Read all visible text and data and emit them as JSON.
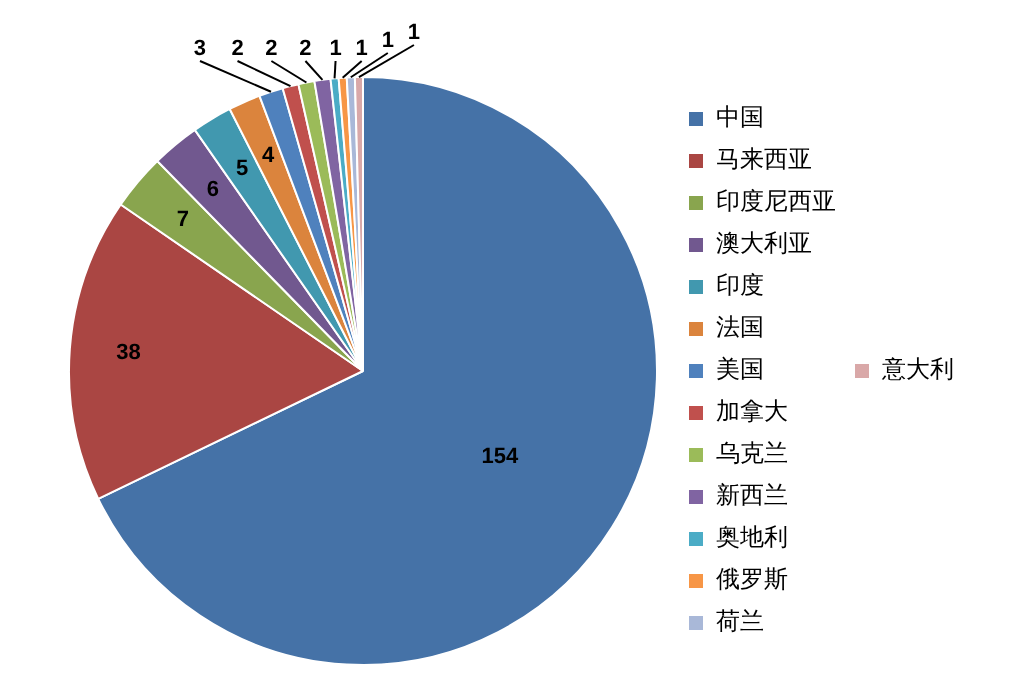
{
  "chart_data": {
    "type": "pie",
    "categories": [
      "中国",
      "马来西亚",
      "印度尼西亚",
      "澳大利亚",
      "印度",
      "法国",
      "美国",
      "加拿大",
      "乌克兰",
      "新西兰",
      "奥地利",
      "俄罗斯",
      "荷兰",
      "意大利"
    ],
    "values": [
      154,
      38,
      7,
      6,
      5,
      4,
      3,
      2,
      2,
      2,
      1,
      1,
      1,
      1
    ],
    "colors": [
      "#4572a7",
      "#aa4643",
      "#89a54e",
      "#71588f",
      "#4198af",
      "#db843d",
      "#4f81bd",
      "#c0504d",
      "#9bbb59",
      "#8064a2",
      "#4bacc6",
      "#f79646",
      "#a9b8d8",
      "#d9a8a8"
    ],
    "data_labels": true,
    "legend": "right"
  }
}
